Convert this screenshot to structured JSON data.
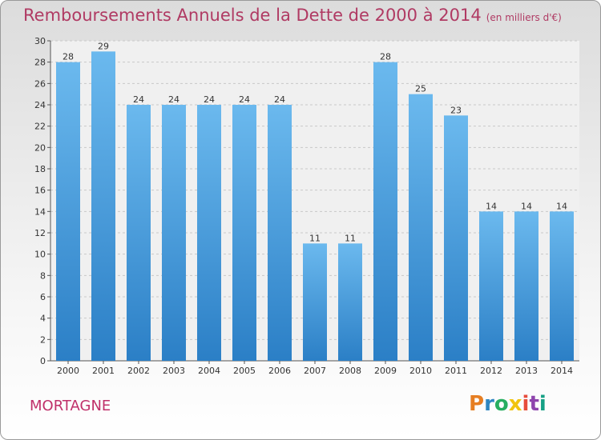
{
  "header": {
    "title": "Remboursements Annuels de la Dette de 2000 à 2014",
    "unit": "(en milliers d'€)"
  },
  "footer": {
    "location": "MORTAGNE",
    "logo_text": "Proxiti"
  },
  "colors": {
    "title": "#b03a63",
    "bar_top": "#6bb9ee",
    "bar_bottom": "#2b7fc6",
    "logo_letters": [
      "#e67e22",
      "#2e86c1",
      "#27ae60",
      "#f1c40f",
      "#e74c3c",
      "#8e44ad",
      "#16a085"
    ]
  },
  "chart_data": {
    "type": "bar",
    "title": "Remboursements Annuels de la Dette de 2000 à 2014",
    "xlabel": "",
    "ylabel": "",
    "categories": [
      "2000",
      "2001",
      "2002",
      "2003",
      "2004",
      "2005",
      "2006",
      "2007",
      "2008",
      "2009",
      "2010",
      "2011",
      "2012",
      "2013",
      "2014"
    ],
    "values": [
      28,
      29,
      24,
      24,
      24,
      24,
      24,
      11,
      11,
      28,
      25,
      23,
      14,
      14,
      14
    ],
    "ylim": [
      0,
      30
    ],
    "yticks": [
      0,
      2,
      4,
      6,
      8,
      10,
      12,
      14,
      16,
      18,
      20,
      22,
      24,
      26,
      28,
      30
    ],
    "grid": true
  }
}
